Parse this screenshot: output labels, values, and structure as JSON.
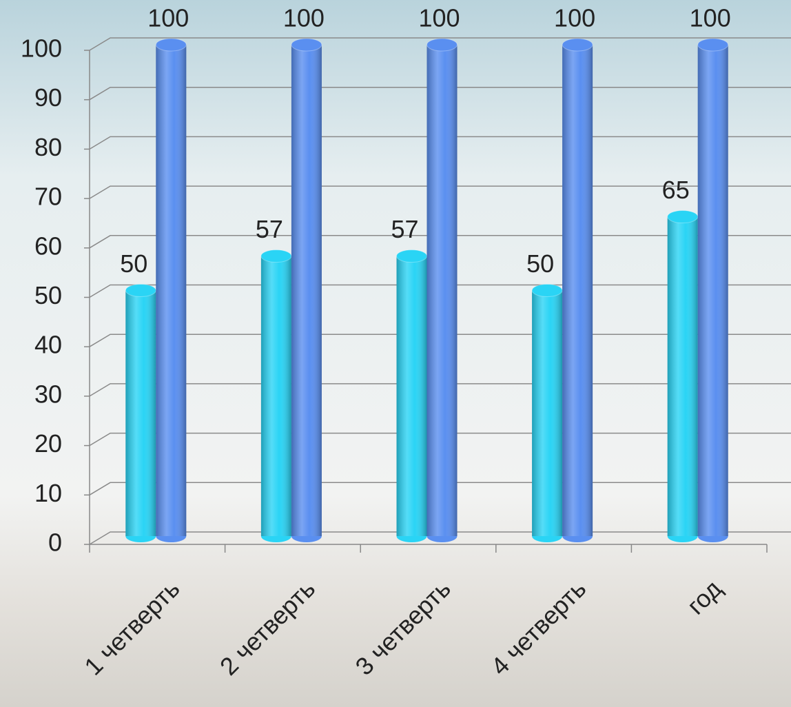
{
  "chart_data": {
    "type": "bar3d",
    "categories": [
      "1 четверть",
      "2 четверть",
      "3 четверть",
      "4 четверть",
      "год"
    ],
    "series": [
      {
        "color": "#2ad4f5",
        "values": [
          50,
          57,
          57,
          50,
          65
        ]
      },
      {
        "color": "#5a8ff0",
        "values": [
          100,
          100,
          100,
          100,
          100
        ]
      }
    ],
    "ylim": [
      0,
      100
    ],
    "yticks": [
      0,
      10,
      20,
      30,
      40,
      50,
      60,
      70,
      80,
      90,
      100
    ],
    "grid": true
  }
}
